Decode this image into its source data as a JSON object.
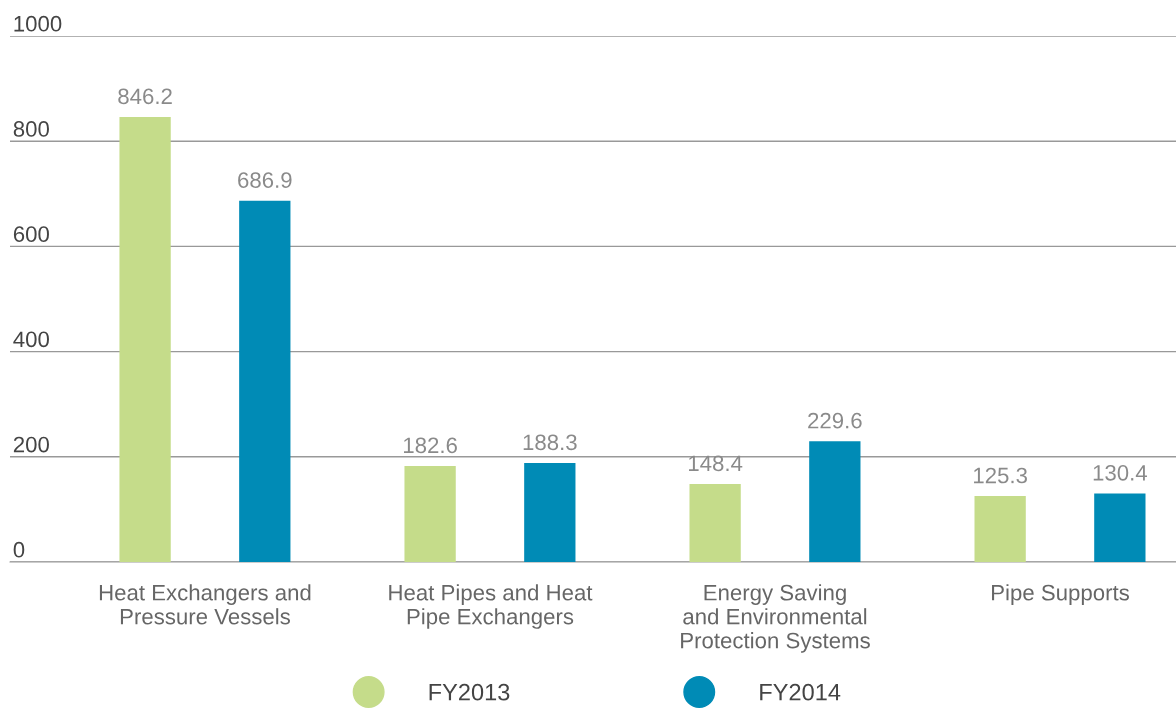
{
  "chart_data": {
    "type": "bar",
    "categories": [
      "Heat Exchangers and\nPressure Vessels",
      "Heat Pipes and Heat\nPipe Exchangers",
      "Energy Saving\nand Environmental\nProtection Systems",
      "Pipe Supports"
    ],
    "series": [
      {
        "name": "FY2013",
        "color": "#c5dc8a",
        "values": [
          846.2,
          182.6,
          148.4,
          125.3
        ]
      },
      {
        "name": "FY2014",
        "color": "#008bb6",
        "values": [
          686.9,
          188.3,
          229.6,
          130.4
        ]
      }
    ],
    "ylim": [
      0,
      1000
    ],
    "yticks": [
      0,
      200,
      400,
      600,
      800,
      1000
    ],
    "grid": "y",
    "legend": "bottom",
    "data_labels": true,
    "marker": "circle"
  }
}
